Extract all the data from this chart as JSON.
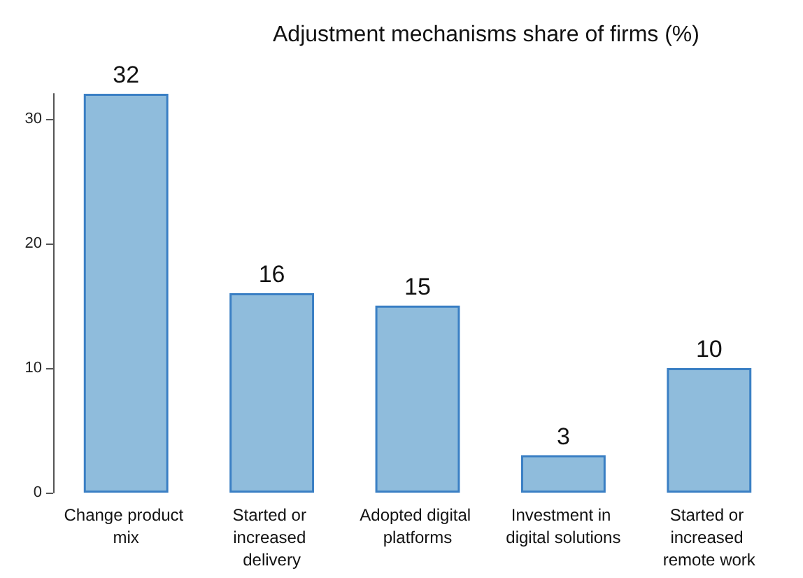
{
  "chart_data": {
    "type": "bar",
    "title": "Adjustment mechanisms share of firms (%)",
    "categories": [
      "Change product mix",
      "Started or increased delivery",
      "Adopted digital platforms",
      "Investment in digital solutions",
      "Started or increased remote work"
    ],
    "values": [
      32,
      16,
      15,
      3,
      10
    ],
    "color": "#8fbcdc",
    "ylim": [
      0,
      32
    ],
    "yticks": [
      0,
      10,
      20,
      30
    ],
    "data_labels": true,
    "grid": false
  }
}
